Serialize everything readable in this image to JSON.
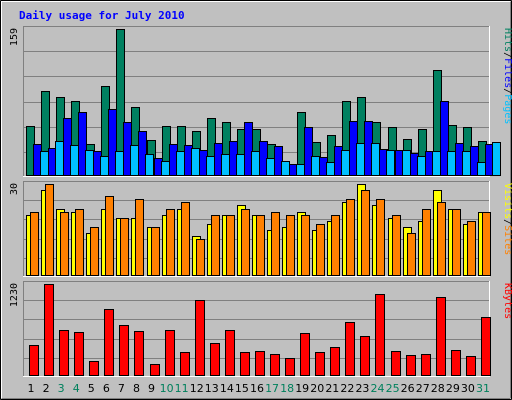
{
  "title": "Daily usage for July 2010",
  "colors": {
    "background": "#c0c0c0",
    "frame": "#000000",
    "pages": "#00c0ff",
    "files": "#0000ff",
    "hits": "#008060",
    "sites": "#ff8000",
    "visits": "#ffff00",
    "kbytes": "#ff0000",
    "weekday": "#000000",
    "weekend": "#00805c",
    "title": "#0000ff"
  },
  "chart_data": [
    {
      "type": "bar",
      "name": "hits-files-pages",
      "y_max_label": "159",
      "ylim": [
        0,
        159
      ],
      "legend": [
        {
          "label": "Pages",
          "color": "#00c0ff"
        },
        {
          "label": "/",
          "color": "#000000"
        },
        {
          "label": "Files",
          "color": "#0000ff"
        },
        {
          "label": "/",
          "color": "#000000"
        },
        {
          "label": "Hits",
          "color": "#008060"
        }
      ],
      "series": [
        {
          "key": "hits",
          "color": "#008060",
          "values": [
            54,
            92,
            85,
            81,
            35,
            97,
            159,
            75,
            39,
            54,
            54,
            49,
            63,
            58,
            51,
            51,
            35,
            13,
            69,
            37,
            44,
            81,
            85,
            58,
            53,
            40,
            51,
            115,
            55,
            53,
            38
          ]
        },
        {
          "key": "files",
          "color": "#0000ff",
          "values": [
            35,
            30,
            63,
            69,
            27,
            73,
            58,
            49,
            20,
            35,
            33,
            28,
            36,
            38,
            58,
            38,
            32,
            13,
            53,
            21,
            32,
            60,
            60,
            29,
            28,
            25,
            27,
            81,
            36,
            32,
            35
          ]
        },
        {
          "key": "pages",
          "color": "#00c0ff",
          "values": [
            27,
            38,
            33,
            28,
            22,
            27,
            33,
            24,
            16,
            27,
            30,
            22,
            24,
            24,
            27,
            20,
            16,
            13,
            22,
            15,
            28,
            36,
            36,
            28,
            28,
            22,
            27,
            27,
            27,
            15,
            37
          ]
        }
      ]
    },
    {
      "type": "bar",
      "name": "visits-sites",
      "y_max_label": "30",
      "ylim": [
        0,
        30
      ],
      "legend": [
        {
          "label": "Sites",
          "color": "#ff8000"
        },
        {
          "label": "/",
          "color": "#000000"
        },
        {
          "label": "Visits",
          "color": "#ffff00"
        }
      ],
      "series": [
        {
          "key": "visits",
          "color": "#ffff00",
          "values": [
            20,
            28,
            22,
            21,
            14,
            22,
            19,
            19,
            16,
            20,
            22,
            13,
            17,
            20,
            23,
            20,
            15,
            16,
            21,
            15,
            18,
            24,
            30,
            23,
            19,
            16,
            18,
            28,
            22,
            17,
            21
          ]
        },
        {
          "key": "sites",
          "color": "#ff8000",
          "values": [
            21,
            30,
            21,
            22,
            16,
            26,
            19,
            25,
            16,
            22,
            24,
            12,
            20,
            20,
            22,
            20,
            21,
            20,
            20,
            17,
            20,
            25,
            28,
            25,
            20,
            14,
            22,
            24,
            22,
            18,
            21
          ]
        }
      ]
    },
    {
      "type": "bar",
      "name": "kbytes",
      "y_max_label": "1230",
      "ylim": [
        0,
        1230
      ],
      "legend": [
        {
          "label": "KBytes",
          "color": "#ff0000"
        }
      ],
      "series": [
        {
          "key": "kbytes",
          "color": "#ff0000",
          "values": [
            410,
            1230,
            620,
            590,
            200,
            900,
            680,
            600,
            160,
            620,
            320,
            1020,
            440,
            620,
            320,
            330,
            300,
            240,
            580,
            320,
            390,
            720,
            530,
            1100,
            330,
            280,
            290,
            1060,
            350,
            270,
            790
          ]
        }
      ]
    }
  ],
  "days": [
    {
      "label": "1",
      "weekend": false
    },
    {
      "label": "2",
      "weekend": false
    },
    {
      "label": "3",
      "weekend": true
    },
    {
      "label": "4",
      "weekend": true
    },
    {
      "label": "5",
      "weekend": false
    },
    {
      "label": "6",
      "weekend": false
    },
    {
      "label": "7",
      "weekend": false
    },
    {
      "label": "8",
      "weekend": false
    },
    {
      "label": "9",
      "weekend": false
    },
    {
      "label": "10",
      "weekend": true
    },
    {
      "label": "11",
      "weekend": true
    },
    {
      "label": "12",
      "weekend": false
    },
    {
      "label": "13",
      "weekend": false
    },
    {
      "label": "14",
      "weekend": false
    },
    {
      "label": "15",
      "weekend": false
    },
    {
      "label": "16",
      "weekend": false
    },
    {
      "label": "17",
      "weekend": true
    },
    {
      "label": "18",
      "weekend": true
    },
    {
      "label": "19",
      "weekend": false
    },
    {
      "label": "20",
      "weekend": false
    },
    {
      "label": "21",
      "weekend": false
    },
    {
      "label": "22",
      "weekend": false
    },
    {
      "label": "23",
      "weekend": false
    },
    {
      "label": "24",
      "weekend": true
    },
    {
      "label": "25",
      "weekend": true
    },
    {
      "label": "26",
      "weekend": false
    },
    {
      "label": "27",
      "weekend": false
    },
    {
      "label": "28",
      "weekend": false
    },
    {
      "label": "29",
      "weekend": false
    },
    {
      "label": "30",
      "weekend": false
    },
    {
      "label": "31",
      "weekend": true
    }
  ]
}
